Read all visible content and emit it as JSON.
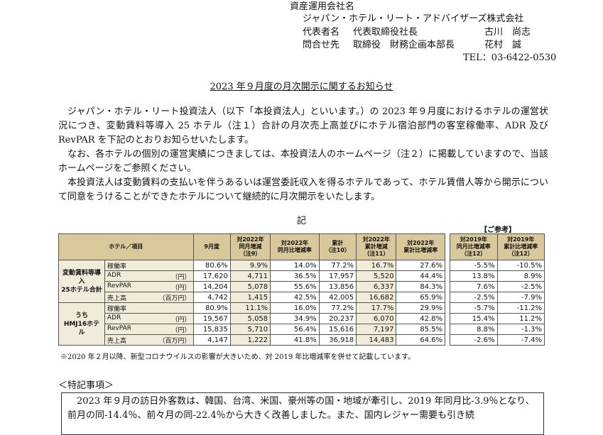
{
  "header": {
    "company_label": "資産運用会社名",
    "company_name": "ジャパン・ホテル・リート・アドバイザーズ株式会社",
    "rep_label": "代表者名",
    "rep_title": "代表取締役社長",
    "rep_name": "古川　尚志",
    "contact_label": "問合せ先",
    "contact_title": "取締役　財務企画本部長",
    "contact_name": "花村　誠",
    "tel": "TEL：03-6422-0530"
  },
  "title": "2023 年９月度の月次開示に関するお知らせ",
  "paragraphs": [
    "ジャパン・ホテル・リート投資法人（以下「本投資法人」といいます。）の 2023 年９月度におけるホテルの運営状況につき、変動賃料等導入 25 ホテル（注１）合計の月次売上高並びにホテル宿泊部門の客室稼働率、ADR 及び RevPAR を下記のとおりお知らせいたします。",
    "なお、各ホテルの個別の運営実績につきましては、本投資法人のホームページ（注２）に掲載していますので、当該ホームページをご参照ください。",
    "本投資法人は変動賃料の支払いを伴うあるいは運営委託収入を得るホテルであって、ホテル賃借人等から開示について同意をうけることができたホテルについて継続的に月次開示をいたします。"
  ],
  "ki": "記",
  "ref_label": "【ご参考】",
  "table": {
    "headers": [
      "ホテル／項目",
      "9月度",
      "対2022年\n同月増減\n（注9）",
      "対2022年\n同月比増減率",
      "累計\n（注10）",
      "対2022年\n累計増減\n（注11）",
      "対2022年\n累計比増減率",
      "対2019年\n同月比増減率\n（注12）",
      "対2019年\n累計比増減率\n（注12）"
    ],
    "groups": [
      {
        "name": "変動賃料等導入\n25ホテル合計",
        "rows": [
          {
            "item": "稼働率",
            "unit": "",
            "v": [
              "80.6%",
              "9.9%",
              "14.0%",
              "77.2%",
              "16.7%",
              "27.6%",
              "-5.5%",
              "-10.5%"
            ]
          },
          {
            "item": "ADR",
            "unit": "（円）",
            "v": [
              "17,620",
              "4,711",
              "36.5%",
              "17,957",
              "5,520",
              "44.4%",
              "13.8%",
              "8.9%"
            ]
          },
          {
            "item": "RevPAR",
            "unit": "（円）",
            "v": [
              "14,204",
              "5,078",
              "55.6%",
              "13,856",
              "6,337",
              "84.3%",
              "7.6%",
              "-2.5%"
            ]
          },
          {
            "item": "売上高",
            "unit": "（百万円）",
            "v": [
              "4,742",
              "1,415",
              "42.5%",
              "42,005",
              "16,682",
              "65.9%",
              "-2.5%",
              "-7.9%"
            ]
          }
        ]
      },
      {
        "name": "うち\nHMJ16ホテル",
        "rows": [
          {
            "item": "稼働率",
            "unit": "",
            "v": [
              "80.9%",
              "11.1%",
              "16.0%",
              "77.2%",
              "17.7%",
              "29.9%",
              "-5.7%",
              "-11.2%"
            ]
          },
          {
            "item": "ADR",
            "unit": "（円）",
            "v": [
              "19,567",
              "5,058",
              "34.9%",
              "20,237",
              "6,070",
              "42.8%",
              "15.4%",
              "11.2%"
            ]
          },
          {
            "item": "RevPAR",
            "unit": "（円）",
            "v": [
              "15,835",
              "5,710",
              "56.4%",
              "15,616",
              "7,197",
              "85.5%",
              "8.8%",
              "-1.3%"
            ]
          },
          {
            "item": "売上高",
            "unit": "（百万円）",
            "v": [
              "4,147",
              "1,222",
              "41.8%",
              "36,918",
              "14,483",
              "64.6%",
              "-2.6%",
              "-7.4%"
            ]
          }
        ]
      }
    ]
  },
  "note": "※2020 年２月以降、新型コロナウイルスの影響が大きいため、対 2019 年比増減率を併せて記載しています。",
  "section_title": "＜特記事項＞",
  "special": "2023 年９月の訪日外客数は、韓国、台湾、米国、豪州等の国・地域が牽引し、2019 年同月比-3.9％となり、前月の同-14.4％、前々月の同-22.4％から大きく改善しました。また、国内レジャー需要も引き続"
}
